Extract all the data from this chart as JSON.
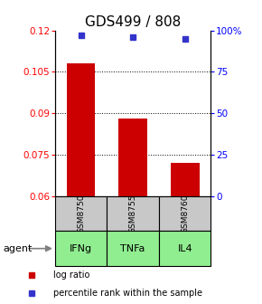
{
  "title": "GDS499 / 808",
  "samples": [
    "GSM8750",
    "GSM8755",
    "GSM8760"
  ],
  "agents": [
    "IFNg",
    "TNFa",
    "IL4"
  ],
  "log_ratio_values": [
    0.108,
    0.088,
    0.072
  ],
  "percentile_values": [
    97,
    96,
    95
  ],
  "log_ratio_baseline": 0.06,
  "ylim_left": [
    0.06,
    0.12
  ],
  "ylim_right": [
    0,
    100
  ],
  "yticks_left": [
    0.06,
    0.075,
    0.09,
    0.105,
    0.12
  ],
  "ytick_labels_left": [
    "0.06",
    "0.075",
    "0.09",
    "0.105",
    "0.12"
  ],
  "yticks_right": [
    0,
    25,
    50,
    75,
    100
  ],
  "ytick_labels_right": [
    "0",
    "25",
    "50",
    "75",
    "100%"
  ],
  "bar_color": "#CC0000",
  "dot_color": "#3333CC",
  "sample_bg_color": "#C8C8C8",
  "agent_bg_color": "#90EE90",
  "title_fontsize": 11,
  "tick_fontsize": 7.5,
  "legend_log_ratio": "log ratio",
  "legend_percentile": "percentile rank within the sample",
  "legend_fontsize": 7,
  "agent_label": "agent"
}
